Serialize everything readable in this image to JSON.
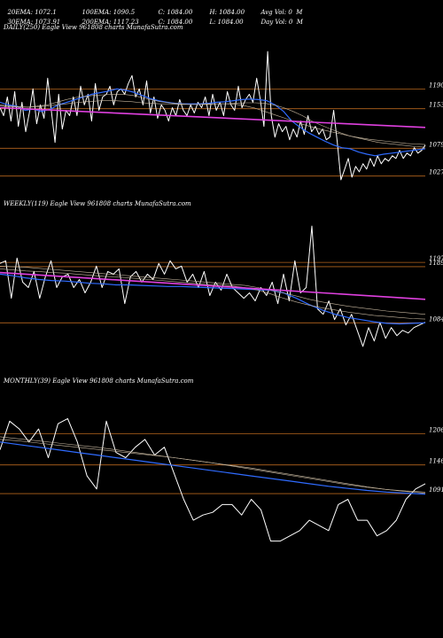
{
  "header": {
    "row1": [
      "20EMA: 1072.1",
      "100EMA: 1090.5",
      "C: 1084.00",
      "H: 1084.00",
      "Avg Vol: 0  M"
    ],
    "row2": [
      "30EMA: 1073.91",
      "200EMA: 1117.23",
      "C: 1084.00",
      "L: 1084.00",
      "Day Vol: 0  M"
    ]
  },
  "colors": {
    "price": "#ffffff",
    "ema20": "#2f6bff",
    "ema_other": "#c8b8a0",
    "long_trend": "#e040e0",
    "level": "#b5651d",
    "background": "#000000"
  },
  "chart_data": [
    {
      "type": "line",
      "title": "DAILY(250) Eagle  View  961808  charts MunafaSutra.com",
      "y_levels": [
        1190,
        1153,
        1079,
        1027
      ],
      "ylim": [
        1000,
        1290
      ],
      "series": [
        {
          "role": "price",
          "values": [
            1155,
            1140,
            1175,
            1130,
            1185,
            1120,
            1165,
            1110,
            1145,
            1190,
            1125,
            1160,
            1135,
            1210,
            1150,
            1090,
            1180,
            1115,
            1150,
            1140,
            1175,
            1140,
            1195,
            1160,
            1180,
            1130,
            1200,
            1150,
            1175,
            1180,
            1195,
            1160,
            1185,
            1190,
            1180,
            1200,
            1215,
            1175,
            1190,
            1160,
            1205,
            1145,
            1175,
            1135,
            1160,
            1150,
            1130,
            1155,
            1140,
            1170,
            1150,
            1140,
            1160,
            1145,
            1165,
            1155,
            1175,
            1140,
            1180,
            1150,
            1165,
            1140,
            1185,
            1160,
            1150,
            1195,
            1155,
            1170,
            1180,
            1165,
            1210,
            1170,
            1120,
            1260,
            1140,
            1100,
            1125,
            1110,
            1120,
            1095,
            1115,
            1100,
            1130,
            1105,
            1140,
            1110,
            1120,
            1105,
            1115,
            1095,
            1100,
            1150,
            1090,
            1020,
            1040,
            1060,
            1025,
            1045,
            1035,
            1050,
            1040,
            1060,
            1045,
            1065,
            1050,
            1060,
            1055,
            1065,
            1060,
            1075,
            1060,
            1070,
            1065,
            1080,
            1070,
            1075,
            1085
          ]
        },
        {
          "role": "ema20",
          "values": [
            1165,
            1160,
            1158,
            1150,
            1152,
            1148,
            1152,
            1160,
            1165,
            1170,
            1175,
            1180,
            1183,
            1186,
            1190,
            1188,
            1184,
            1178,
            1172,
            1168,
            1165,
            1163,
            1162,
            1162,
            1162,
            1163,
            1165,
            1166,
            1168,
            1170,
            1171,
            1170,
            1168,
            1160,
            1148,
            1130,
            1118,
            1108,
            1100,
            1092,
            1085,
            1080,
            1078,
            1072,
            1068,
            1065,
            1068,
            1070,
            1072,
            1074,
            1076,
            1078
          ]
        },
        {
          "role": "ema_other",
          "values": [
            1160,
            1158,
            1157,
            1156,
            1158,
            1160,
            1165,
            1170,
            1174,
            1176,
            1178,
            1179,
            1180,
            1180,
            1178,
            1174,
            1170,
            1166,
            1164,
            1162,
            1161,
            1161,
            1161,
            1162,
            1162,
            1163,
            1164,
            1164,
            1163,
            1160,
            1155,
            1148,
            1140,
            1130,
            1122,
            1115,
            1108,
            1102,
            1098,
            1094,
            1090,
            1088,
            1086,
            1084,
            1082,
            1081
          ]
        },
        {
          "role": "ema_other",
          "values": [
            1158,
            1157,
            1156,
            1156,
            1157,
            1158,
            1160,
            1162,
            1164,
            1166,
            1167,
            1168,
            1168,
            1167,
            1166,
            1164,
            1163,
            1162,
            1162,
            1161,
            1161,
            1161,
            1162,
            1162,
            1162,
            1161,
            1158,
            1154,
            1148,
            1142,
            1136,
            1130,
            1124,
            1119,
            1114,
            1110,
            1106,
            1102,
            1099,
            1096,
            1094,
            1092,
            1090,
            1088,
            1087,
            1086
          ]
        },
        {
          "role": "long_trend",
          "values": [
            1155,
            1118
          ]
        }
      ]
    },
    {
      "type": "line",
      "title": "WEEKLY(119) Eagle  View  961808  charts MunafaSutra.com",
      "y_levels": [
        1197,
        1189,
        1084
      ],
      "ylim": [
        1000,
        1290
      ],
      "series": [
        {
          "role": "price",
          "values": [
            1195,
            1200,
            1130,
            1205,
            1160,
            1150,
            1180,
            1130,
            1170,
            1200,
            1150,
            1170,
            1175,
            1150,
            1165,
            1140,
            1160,
            1190,
            1150,
            1180,
            1175,
            1185,
            1120,
            1170,
            1180,
            1160,
            1175,
            1165,
            1195,
            1175,
            1200,
            1185,
            1190,
            1160,
            1175,
            1150,
            1180,
            1135,
            1160,
            1145,
            1175,
            1150,
            1140,
            1130,
            1140,
            1125,
            1150,
            1135,
            1160,
            1120,
            1175,
            1125,
            1200,
            1140,
            1150,
            1265,
            1110,
            1100,
            1125,
            1090,
            1110,
            1080,
            1100,
            1070,
            1040,
            1075,
            1050,
            1085,
            1055,
            1075,
            1060,
            1070,
            1065,
            1075,
            1080,
            1085
          ]
        },
        {
          "role": "ema20",
          "values": [
            1175,
            1172,
            1168,
            1165,
            1163,
            1162,
            1160,
            1158,
            1157,
            1155,
            1155,
            1154,
            1153,
            1152,
            1152,
            1151,
            1150,
            1149,
            1148,
            1147,
            1146,
            1145,
            1140,
            1130,
            1118,
            1108,
            1100,
            1094,
            1090,
            1086,
            1083,
            1082,
            1083,
            1084
          ]
        },
        {
          "role": "ema_other",
          "values": [
            1185,
            1183,
            1181,
            1180,
            1178,
            1177,
            1175,
            1173,
            1171,
            1170,
            1168,
            1166,
            1164,
            1162,
            1160,
            1158,
            1156,
            1155,
            1153,
            1150,
            1145,
            1138,
            1130,
            1123,
            1117,
            1112,
            1108,
            1104,
            1101,
            1098,
            1096,
            1094,
            1092,
            1091
          ]
        },
        {
          "role": "ema_other",
          "values": [
            1190,
            1189,
            1188,
            1186,
            1184,
            1182,
            1180,
            1178,
            1176,
            1174,
            1172,
            1170,
            1168,
            1166,
            1164,
            1162,
            1160,
            1158,
            1156,
            1154,
            1150,
            1145,
            1140,
            1134,
            1128,
            1123,
            1119,
            1115,
            1112,
            1109,
            1106,
            1104,
            1102,
            1100
          ]
        },
        {
          "role": "long_trend",
          "values": [
            1178,
            1128
          ]
        }
      ]
    },
    {
      "type": "line",
      "title": "MONTHLY(39) Eagle  View  961808  charts MunafaSutra.com",
      "y_levels": [
        1206,
        1146,
        1091
      ],
      "ylim": [
        950,
        1290
      ],
      "series": [
        {
          "role": "price",
          "values": [
            1175,
            1230,
            1215,
            1190,
            1215,
            1160,
            1225,
            1235,
            1190,
            1125,
            1100,
            1230,
            1170,
            1160,
            1180,
            1195,
            1165,
            1180,
            1130,
            1080,
            1040,
            1050,
            1055,
            1070,
            1070,
            1050,
            1080,
            1060,
            1000,
            1000,
            1010,
            1020,
            1040,
            1030,
            1020,
            1070,
            1080,
            1040,
            1040,
            1010,
            1020,
            1040,
            1080,
            1100,
            1110
          ]
        },
        {
          "role": "ema20",
          "values": [
            1190,
            1185,
            1180,
            1175,
            1170,
            1165,
            1160,
            1155,
            1150,
            1145,
            1140,
            1135,
            1130,
            1125,
            1120,
            1115,
            1110,
            1105,
            1101,
            1097,
            1094,
            1092,
            1090
          ]
        },
        {
          "role": "ema_other",
          "values": [
            1195,
            1192,
            1188,
            1184,
            1180,
            1176,
            1172,
            1168,
            1164,
            1160,
            1155,
            1150,
            1145,
            1140,
            1134,
            1128,
            1122,
            1116,
            1110,
            1104,
            1099,
            1095,
            1092
          ]
        },
        {
          "role": "ema_other",
          "values": [
            1200,
            1196,
            1192,
            1188,
            1184,
            1180,
            1175,
            1170,
            1165,
            1160,
            1155,
            1150,
            1144,
            1138,
            1132,
            1126,
            1120,
            1114,
            1108,
            1103,
            1099,
            1096,
            1094
          ]
        }
      ]
    }
  ]
}
